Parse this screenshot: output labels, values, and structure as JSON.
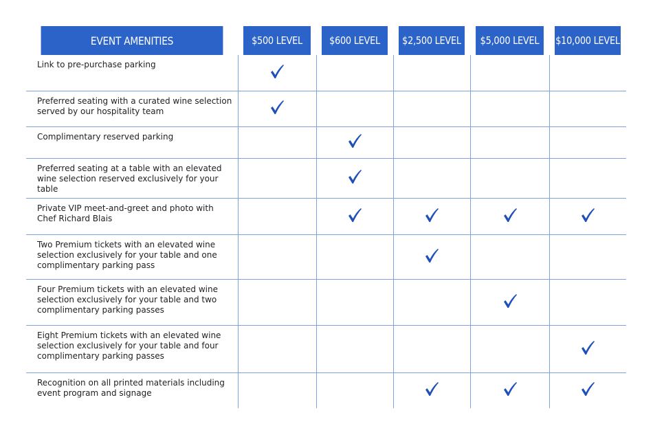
{
  "header": {
    "amenity": "EVENT AMENITIES",
    "levels": [
      "$500 LEVEL",
      "$600 LEVEL",
      "$2,500 LEVEL",
      "$5,000 LEVEL",
      "$10,000 LEVEL"
    ]
  },
  "colors": {
    "header_bg": "#2c63c9",
    "check": "#1f4fb8",
    "grid_line": "#7fa2dc"
  },
  "rows": [
    {
      "label": "Link to pre-purchase parking",
      "checks": [
        true,
        false,
        false,
        false,
        false
      ]
    },
    {
      "label": "Preferred seating with a curated wine selection served by our hospitality team",
      "checks": [
        true,
        false,
        false,
        false,
        false
      ]
    },
    {
      "label": "Complimentary reserved parking",
      "checks": [
        false,
        true,
        false,
        false,
        false
      ]
    },
    {
      "label": "Preferred seating at a table with an elevated wine selection reserved exclusively for your table",
      "checks": [
        false,
        true,
        false,
        false,
        false
      ]
    },
    {
      "label": "Private VIP meet-and-greet and photo with Chef Richard Blais",
      "checks": [
        false,
        true,
        true,
        true,
        true
      ]
    },
    {
      "label": "Two Premium tickets with an elevated wine selection exclusively for your table and one complimentary parking pass",
      "checks": [
        false,
        false,
        true,
        false,
        false
      ]
    },
    {
      "label": "Four Premium tickets with an elevated wine selection exclusively for your table and two complimentary parking passes",
      "checks": [
        false,
        false,
        false,
        true,
        false
      ]
    },
    {
      "label": "Eight Premium tickets with an elevated wine selection exclusively for your table and four complimentary parking passes",
      "checks": [
        false,
        false,
        false,
        false,
        true
      ]
    },
    {
      "label": "Recognition on all printed materials including event program and signage",
      "checks": [
        false,
        false,
        true,
        true,
        true
      ]
    }
  ]
}
